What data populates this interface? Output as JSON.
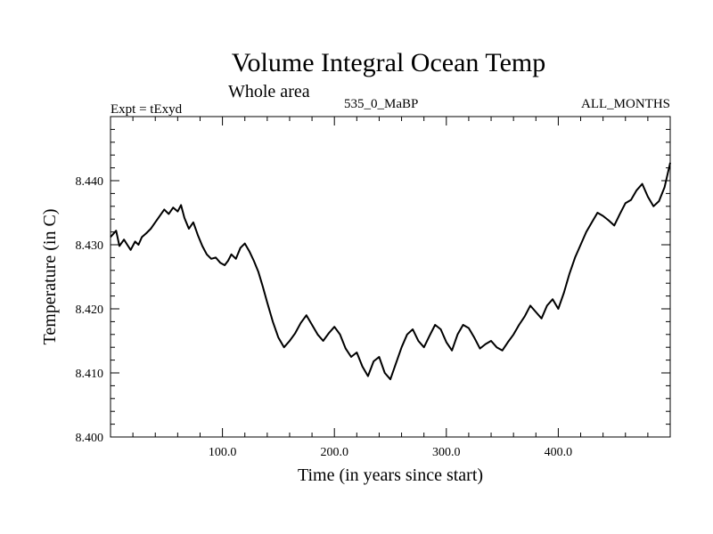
{
  "chart_data": {
    "type": "line",
    "title": "Volume Integral Ocean Temp",
    "subtitle": "Whole area",
    "annotations": {
      "left": "Expt = tExyd",
      "center": "535_0_MaBP",
      "right": "ALL_MONTHS"
    },
    "xlabel": "Time (in years since start)",
    "ylabel": "Temperature (in C)",
    "xlim": [
      0,
      500
    ],
    "ylim": [
      8.4,
      8.45
    ],
    "x_ticks": [
      100,
      200,
      300,
      400
    ],
    "x_tick_labels": [
      "100.0",
      "200.0",
      "300.0",
      "400.0"
    ],
    "y_ticks": [
      8.4,
      8.41,
      8.42,
      8.43,
      8.44
    ],
    "y_tick_labels": [
      "8.400",
      "8.410",
      "8.420",
      "8.430",
      "8.440"
    ],
    "grid": false,
    "line_color": "#000000",
    "series": [
      {
        "x": [
          0,
          5,
          8,
          12,
          15,
          18,
          22,
          25,
          28,
          32,
          36,
          40,
          44,
          48,
          52,
          56,
          60,
          63,
          66,
          70,
          74,
          78,
          82,
          86,
          90,
          94,
          98,
          102,
          105,
          108,
          112,
          116,
          120,
          124,
          128,
          132,
          136,
          140,
          145,
          150,
          155,
          160,
          165,
          170,
          175,
          180,
          185,
          190,
          195,
          200,
          205,
          210,
          215,
          220,
          225,
          230,
          235,
          240,
          245,
          250,
          255,
          260,
          265,
          270,
          275,
          280,
          285,
          290,
          295,
          300,
          305,
          310,
          315,
          320,
          325,
          330,
          335,
          340,
          345,
          350,
          355,
          360,
          365,
          370,
          375,
          380,
          385,
          390,
          395,
          400,
          405,
          410,
          415,
          420,
          425,
          430,
          435,
          440,
          445,
          450,
          455,
          460,
          465,
          470,
          475,
          480,
          485,
          490,
          495,
          500
        ],
        "y": [
          8.4312,
          8.4322,
          8.4298,
          8.4308,
          8.43,
          8.4292,
          8.4305,
          8.43,
          8.4312,
          8.4318,
          8.4325,
          8.4335,
          8.4345,
          8.4355,
          8.4348,
          8.4358,
          8.4352,
          8.4362,
          8.4342,
          8.4325,
          8.4335,
          8.4315,
          8.4298,
          8.4285,
          8.4278,
          8.428,
          8.4272,
          8.4268,
          8.4275,
          8.4285,
          8.4278,
          8.4295,
          8.4302,
          8.429,
          8.4275,
          8.4258,
          8.4235,
          8.421,
          8.418,
          8.4155,
          8.414,
          8.415,
          8.4162,
          8.4178,
          8.419,
          8.4175,
          8.416,
          8.415,
          8.4162,
          8.4172,
          8.416,
          8.4138,
          8.4125,
          8.4132,
          8.411,
          8.4095,
          8.4118,
          8.4125,
          8.41,
          8.409,
          8.4115,
          8.414,
          8.416,
          8.4168,
          8.415,
          8.414,
          8.4158,
          8.4175,
          8.4168,
          8.4148,
          8.4135,
          8.416,
          8.4175,
          8.417,
          8.4155,
          8.4138,
          8.4145,
          8.415,
          8.414,
          8.4135,
          8.4148,
          8.416,
          8.4175,
          8.4188,
          8.4205,
          8.4195,
          8.4185,
          8.4205,
          8.4215,
          8.42,
          8.4225,
          8.4255,
          8.428,
          8.43,
          8.432,
          8.4335,
          8.435,
          8.4345,
          8.4338,
          8.433,
          8.4348,
          8.4365,
          8.437,
          8.4385,
          8.4395,
          8.4375,
          8.436,
          8.4368,
          8.439,
          8.4428
        ]
      }
    ]
  }
}
